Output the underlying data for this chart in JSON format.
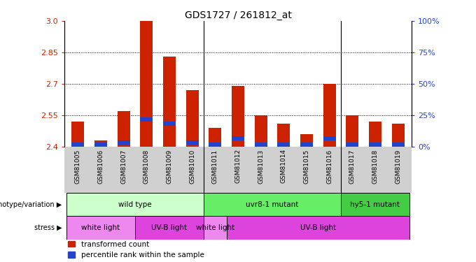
{
  "title": "GDS1727 / 261812_at",
  "samples": [
    "GSM81005",
    "GSM81006",
    "GSM81007",
    "GSM81008",
    "GSM81009",
    "GSM81010",
    "GSM81011",
    "GSM81012",
    "GSM81013",
    "GSM81014",
    "GSM81015",
    "GSM81016",
    "GSM81017",
    "GSM81018",
    "GSM81019"
  ],
  "red_values": [
    2.52,
    2.43,
    2.57,
    3.0,
    2.83,
    2.67,
    2.49,
    2.69,
    2.55,
    2.51,
    2.46,
    2.7,
    2.55,
    2.52,
    2.51
  ],
  "blue_values": [
    2.41,
    2.41,
    2.42,
    2.53,
    2.51,
    2.42,
    2.41,
    2.44,
    2.41,
    2.41,
    2.41,
    2.44,
    2.41,
    2.41,
    2.41
  ],
  "y_min": 2.4,
  "y_max": 3.0,
  "y_ticks_left": [
    2.4,
    2.55,
    2.7,
    2.85,
    3.0
  ],
  "y_ticks_right_vals": [
    0,
    25,
    50,
    75,
    100
  ],
  "genotype_groups": [
    {
      "label": "wild type",
      "start": 0,
      "end": 6,
      "color": "#ccffcc"
    },
    {
      "label": "uvr8-1 mutant",
      "start": 6,
      "end": 12,
      "color": "#66ee66"
    },
    {
      "label": "hy5-1 mutant",
      "start": 12,
      "end": 15,
      "color": "#44cc44"
    }
  ],
  "stress_groups": [
    {
      "label": "white light",
      "start": 0,
      "end": 3,
      "color": "#ee88ee"
    },
    {
      "label": "UV-B light",
      "start": 3,
      "end": 6,
      "color": "#dd44dd"
    },
    {
      "label": "white light",
      "start": 6,
      "end": 7,
      "color": "#ee88ee"
    },
    {
      "label": "UV-B light",
      "start": 7,
      "end": 15,
      "color": "#dd44dd"
    }
  ],
  "bar_width": 0.55,
  "red_color": "#cc2200",
  "blue_color": "#2244cc",
  "label_color_left": "#cc2200",
  "label_color_right": "#2244cc",
  "geno_separators": [
    5.5,
    11.5
  ],
  "stress_separators": [
    2.5,
    5.5,
    6.5
  ]
}
